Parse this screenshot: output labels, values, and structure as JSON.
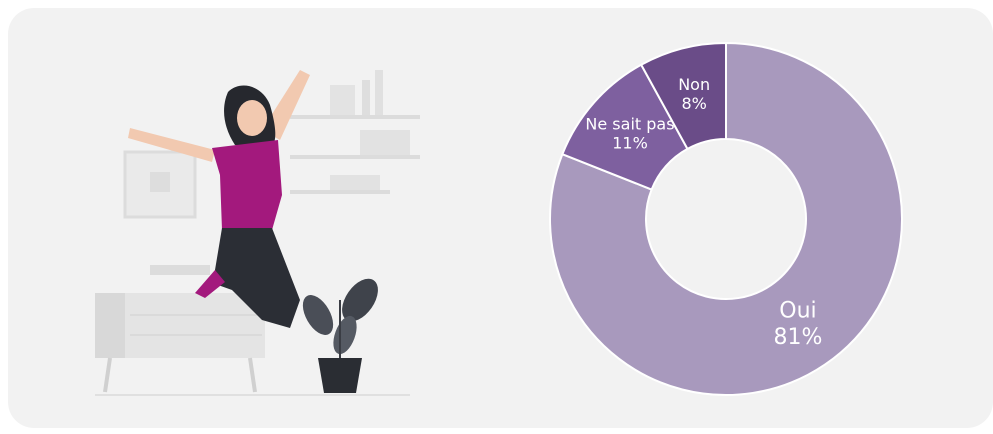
{
  "chart_data": {
    "type": "donut",
    "categories": [
      "Oui",
      "Ne sait pas",
      "Non"
    ],
    "values": [
      81,
      11,
      8
    ],
    "value_labels": [
      "81%",
      "11%",
      "8%"
    ],
    "colors": [
      "#a899bd",
      "#7e609f",
      "#6a4c88"
    ]
  }
}
